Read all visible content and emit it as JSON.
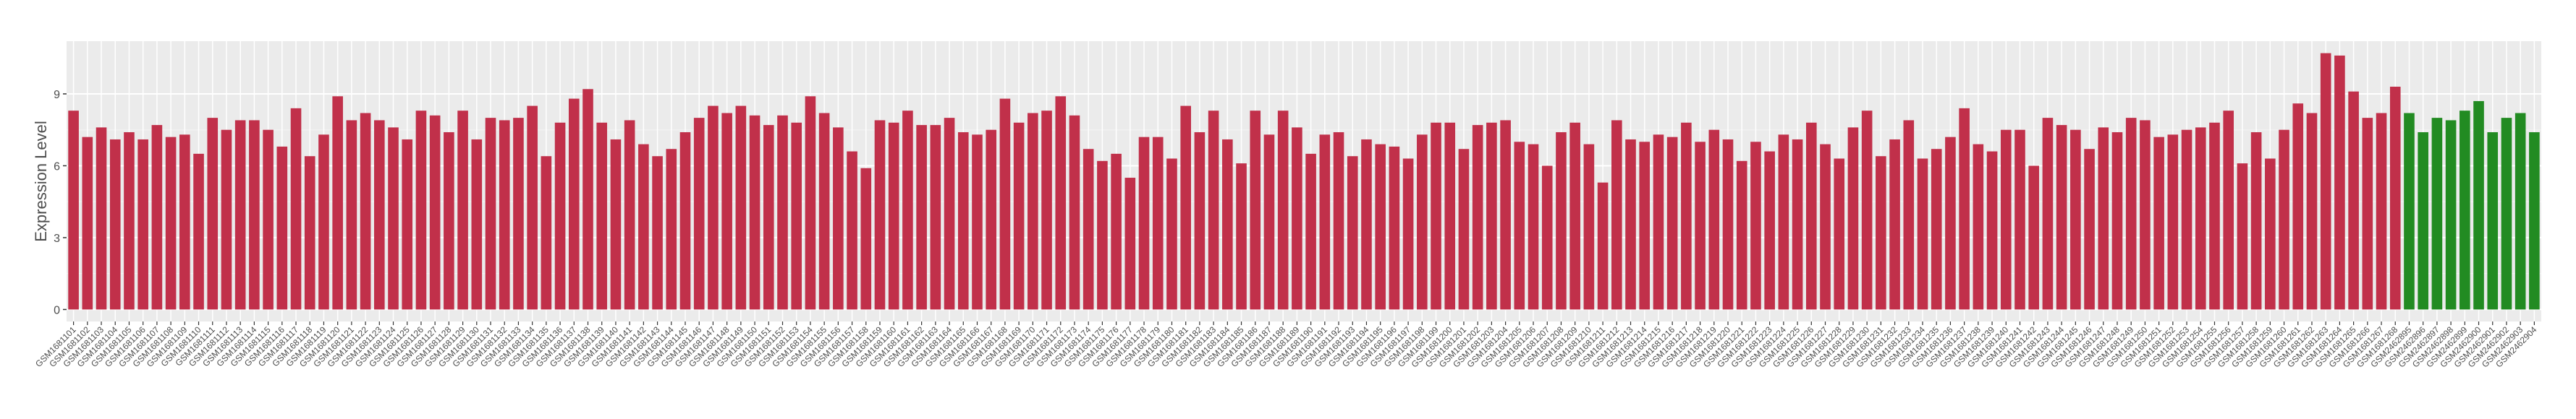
{
  "chart_data": {
    "type": "bar",
    "y_label": "Expression Level",
    "ylim": [
      -0.5,
      11.2
    ],
    "yticks": [
      0,
      3,
      6,
      9
    ],
    "grid": true,
    "categories": [
      "GSM1681101",
      "GSM1681102",
      "GSM1681103",
      "GSM1681104",
      "GSM1681105",
      "GSM1681106",
      "GSM1681107",
      "GSM1681108",
      "GSM1681109",
      "GSM1681110",
      "GSM1681111",
      "GSM1681112",
      "GSM1681113",
      "GSM1681114",
      "GSM1681115",
      "GSM1681116",
      "GSM1681117",
      "GSM1681118",
      "GSM1681119",
      "GSM1681120",
      "GSM1681121",
      "GSM1681122",
      "GSM1681123",
      "GSM1681124",
      "GSM1681125",
      "GSM1681126",
      "GSM1681127",
      "GSM1681128",
      "GSM1681129",
      "GSM1681130",
      "GSM1681131",
      "GSM1681132",
      "GSM1681133",
      "GSM1681134",
      "GSM1681135",
      "GSM1681136",
      "GSM1681137",
      "GSM1681138",
      "GSM1681139",
      "GSM1681140",
      "GSM1681141",
      "GSM1681142",
      "GSM1681143",
      "GSM1681144",
      "GSM1681145",
      "GSM1681146",
      "GSM1681147",
      "GSM1681148",
      "GSM1681149",
      "GSM1681150",
      "GSM1681151",
      "GSM1681152",
      "GSM1681153",
      "GSM1681154",
      "GSM1681155",
      "GSM1681156",
      "GSM1681157",
      "GSM1681158",
      "GSM1681159",
      "GSM1681160",
      "GSM1681161",
      "GSM1681162",
      "GSM1681163",
      "GSM1681164",
      "GSM1681165",
      "GSM1681166",
      "GSM1681167",
      "GSM1681168",
      "GSM1681169",
      "GSM1681170",
      "GSM1681171",
      "GSM1681172",
      "GSM1681173",
      "GSM1681174",
      "GSM1681175",
      "GSM1681176",
      "GSM1681177",
      "GSM1681178",
      "GSM1681179",
      "GSM1681180",
      "GSM1681181",
      "GSM1681182",
      "GSM1681183",
      "GSM1681184",
      "GSM1681185",
      "GSM1681186",
      "GSM1681187",
      "GSM1681188",
      "GSM1681189",
      "GSM1681190",
      "GSM1681191",
      "GSM1681192",
      "GSM1681193",
      "GSM1681194",
      "GSM1681195",
      "GSM1681196",
      "GSM1681197",
      "GSM1681198",
      "GSM1681199",
      "GSM1681200",
      "GSM1681201",
      "GSM1681202",
      "GSM1681203",
      "GSM1681204",
      "GSM1681205",
      "GSM1681206",
      "GSM1681207",
      "GSM1681208",
      "GSM1681209",
      "GSM1681210",
      "GSM1681211",
      "GSM1681212",
      "GSM1681213",
      "GSM1681214",
      "GSM1681215",
      "GSM1681216",
      "GSM1681217",
      "GSM1681218",
      "GSM1681219",
      "GSM1681220",
      "GSM1681221",
      "GSM1681222",
      "GSM1681223",
      "GSM1681224",
      "GSM1681225",
      "GSM1681226",
      "GSM1681227",
      "GSM1681228",
      "GSM1681229",
      "GSM1681230",
      "GSM1681231",
      "GSM1681232",
      "GSM1681233",
      "GSM1681234",
      "GSM1681235",
      "GSM1681236",
      "GSM1681237",
      "GSM1681238",
      "GSM1681239",
      "GSM1681240",
      "GSM1681241",
      "GSM1681242",
      "GSM1681243",
      "GSM1681244",
      "GSM1681245",
      "GSM1681246",
      "GSM1681247",
      "GSM1681248",
      "GSM1681249",
      "GSM1681250",
      "GSM1681251",
      "GSM1681252",
      "GSM1681253",
      "GSM1681254",
      "GSM1681255",
      "GSM1681256",
      "GSM1681257",
      "GSM1681258",
      "GSM1681259",
      "GSM1681260",
      "GSM1681261",
      "GSM1681262",
      "GSM1681263",
      "GSM1681264",
      "GSM1681265",
      "GSM1681266",
      "GSM1681267",
      "GSM1681268",
      "GSM2462895",
      "GSM2462896",
      "GSM2462897",
      "GSM2462898",
      "GSM2462899",
      "GSM2462900",
      "GSM2462901",
      "GSM2462902",
      "GSM2462903",
      "GSM2462904"
    ],
    "values": [
      8.3,
      7.2,
      7.6,
      7.1,
      7.4,
      7.1,
      7.7,
      7.2,
      7.3,
      6.5,
      8.0,
      7.5,
      7.9,
      7.9,
      7.5,
      6.8,
      8.4,
      6.4,
      7.3,
      8.9,
      7.9,
      8.2,
      7.9,
      7.6,
      7.1,
      8.3,
      8.1,
      7.4,
      8.3,
      7.1,
      8.0,
      7.9,
      8.0,
      8.5,
      6.4,
      7.8,
      8.8,
      9.2,
      7.8,
      7.1,
      7.9,
      6.9,
      6.4,
      6.7,
      7.4,
      8.0,
      8.5,
      8.2,
      8.5,
      8.1,
      7.7,
      8.1,
      7.8,
      8.9,
      8.2,
      7.6,
      6.6,
      5.9,
      7.9,
      7.8,
      8.3,
      7.7,
      7.7,
      8.0,
      7.4,
      7.3,
      7.5,
      8.8,
      7.8,
      8.2,
      8.3,
      8.9,
      8.1,
      6.7,
      6.2,
      6.5,
      5.5,
      7.2,
      7.2,
      6.3,
      8.5,
      7.4,
      8.3,
      7.1,
      6.1,
      8.3,
      7.3,
      8.3,
      7.6,
      6.5,
      7.3,
      7.4,
      6.4,
      7.1,
      6.9,
      6.8,
      6.3,
      7.3,
      7.8,
      7.8,
      6.7,
      7.7,
      7.8,
      7.9,
      7.0,
      6.9,
      6.0,
      7.4,
      7.8,
      6.9,
      5.3,
      7.9,
      7.1,
      7.0,
      7.3,
      7.2,
      7.8,
      7.0,
      7.5,
      7.1,
      6.2,
      7.0,
      6.6,
      7.3,
      7.1,
      7.8,
      6.9,
      6.3,
      7.6,
      8.3,
      6.4,
      7.1,
      7.9,
      6.3,
      6.7,
      7.2,
      8.4,
      6.9,
      6.6,
      7.5,
      7.5,
      6.0,
      8.0,
      7.7,
      7.5,
      6.7,
      7.6,
      7.4,
      8.0,
      7.9,
      7.2,
      7.3,
      7.5,
      7.6,
      7.8,
      8.3,
      6.1,
      7.4,
      6.3,
      7.5,
      8.6,
      8.2,
      10.7,
      10.6,
      9.1,
      8.0,
      8.2,
      9.3,
      8.2,
      7.4,
      8.0,
      7.9,
      8.3,
      8.7,
      7.4,
      8.0,
      8.2,
      7.4
    ],
    "colors": [
      "#c1304a",
      "#c1304a",
      "#c1304a",
      "#c1304a",
      "#c1304a",
      "#c1304a",
      "#c1304a",
      "#c1304a",
      "#c1304a",
      "#c1304a",
      "#c1304a",
      "#c1304a",
      "#c1304a",
      "#c1304a",
      "#c1304a",
      "#c1304a",
      "#c1304a",
      "#c1304a",
      "#c1304a",
      "#c1304a",
      "#c1304a",
      "#c1304a",
      "#c1304a",
      "#c1304a",
      "#c1304a",
      "#c1304a",
      "#c1304a",
      "#c1304a",
      "#c1304a",
      "#c1304a",
      "#c1304a",
      "#c1304a",
      "#c1304a",
      "#c1304a",
      "#c1304a",
      "#c1304a",
      "#c1304a",
      "#c1304a",
      "#c1304a",
      "#c1304a",
      "#c1304a",
      "#c1304a",
      "#c1304a",
      "#c1304a",
      "#c1304a",
      "#c1304a",
      "#c1304a",
      "#c1304a",
      "#c1304a",
      "#c1304a",
      "#c1304a",
      "#c1304a",
      "#c1304a",
      "#c1304a",
      "#c1304a",
      "#c1304a",
      "#c1304a",
      "#c1304a",
      "#c1304a",
      "#c1304a",
      "#c1304a",
      "#c1304a",
      "#c1304a",
      "#c1304a",
      "#c1304a",
      "#c1304a",
      "#c1304a",
      "#c1304a",
      "#c1304a",
      "#c1304a",
      "#c1304a",
      "#c1304a",
      "#c1304a",
      "#c1304a",
      "#c1304a",
      "#c1304a",
      "#c1304a",
      "#c1304a",
      "#c1304a",
      "#c1304a",
      "#c1304a",
      "#c1304a",
      "#c1304a",
      "#c1304a",
      "#c1304a",
      "#c1304a",
      "#c1304a",
      "#c1304a",
      "#c1304a",
      "#c1304a",
      "#c1304a",
      "#c1304a",
      "#c1304a",
      "#c1304a",
      "#c1304a",
      "#c1304a",
      "#c1304a",
      "#c1304a",
      "#c1304a",
      "#c1304a",
      "#c1304a",
      "#c1304a",
      "#c1304a",
      "#c1304a",
      "#c1304a",
      "#c1304a",
      "#c1304a",
      "#c1304a",
      "#c1304a",
      "#c1304a",
      "#c1304a",
      "#c1304a",
      "#c1304a",
      "#c1304a",
      "#c1304a",
      "#c1304a",
      "#c1304a",
      "#c1304a",
      "#c1304a",
      "#c1304a",
      "#c1304a",
      "#c1304a",
      "#c1304a",
      "#c1304a",
      "#c1304a",
      "#c1304a",
      "#c1304a",
      "#c1304a",
      "#c1304a",
      "#c1304a",
      "#c1304a",
      "#c1304a",
      "#c1304a",
      "#c1304a",
      "#c1304a",
      "#c1304a",
      "#c1304a",
      "#c1304a",
      "#c1304a",
      "#c1304a",
      "#c1304a",
      "#c1304a",
      "#c1304a",
      "#c1304a",
      "#c1304a",
      "#c1304a",
      "#c1304a",
      "#c1304a",
      "#c1304a",
      "#c1304a",
      "#c1304a",
      "#c1304a",
      "#c1304a",
      "#c1304a",
      "#c1304a",
      "#c1304a",
      "#c1304a",
      "#c1304a",
      "#c1304a",
      "#c1304a",
      "#c1304a",
      "#c1304a",
      "#c1304a",
      "#c1304a",
      "#c1304a",
      "#c1304a",
      "#c1304a",
      "#c1304a",
      "#228b22",
      "#228b22",
      "#228b22",
      "#228b22",
      "#228b22",
      "#228b22",
      "#228b22",
      "#228b22",
      "#228b22",
      "#228b22"
    ]
  }
}
